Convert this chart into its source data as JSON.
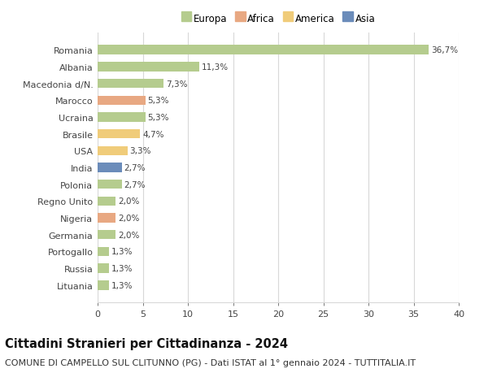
{
  "countries": [
    "Romania",
    "Albania",
    "Macedonia d/N.",
    "Marocco",
    "Ucraina",
    "Brasile",
    "USA",
    "India",
    "Polonia",
    "Regno Unito",
    "Nigeria",
    "Germania",
    "Portogallo",
    "Russia",
    "Lituania"
  ],
  "values": [
    36.7,
    11.3,
    7.3,
    5.3,
    5.3,
    4.7,
    3.3,
    2.7,
    2.7,
    2.0,
    2.0,
    2.0,
    1.3,
    1.3,
    1.3
  ],
  "labels": [
    "36,7%",
    "11,3%",
    "7,3%",
    "5,3%",
    "5,3%",
    "4,7%",
    "3,3%",
    "2,7%",
    "2,7%",
    "2,0%",
    "2,0%",
    "2,0%",
    "1,3%",
    "1,3%",
    "1,3%"
  ],
  "continents": [
    "Europa",
    "Europa",
    "Europa",
    "Africa",
    "Europa",
    "America",
    "America",
    "Asia",
    "Europa",
    "Europa",
    "Africa",
    "Europa",
    "Europa",
    "Europa",
    "Europa"
  ],
  "colors": {
    "Europa": "#b5cc8e",
    "Africa": "#e8a882",
    "America": "#f0cc7a",
    "Asia": "#6b8cba"
  },
  "legend_order": [
    "Europa",
    "Africa",
    "America",
    "Asia"
  ],
  "title": "Cittadini Stranieri per Cittadinanza - 2024",
  "subtitle": "COMUNE DI CAMPELLO SUL CLITUNNO (PG) - Dati ISTAT al 1° gennaio 2024 - TUTTITALIA.IT",
  "xlim": [
    0,
    40
  ],
  "xticks": [
    0,
    5,
    10,
    15,
    20,
    25,
    30,
    35,
    40
  ],
  "background_color": "#ffffff",
  "grid_color": "#d8d8d8",
  "bar_height": 0.55,
  "title_fontsize": 10.5,
  "subtitle_fontsize": 8,
  "label_fontsize": 7.5,
  "tick_fontsize": 8,
  "legend_fontsize": 8.5
}
